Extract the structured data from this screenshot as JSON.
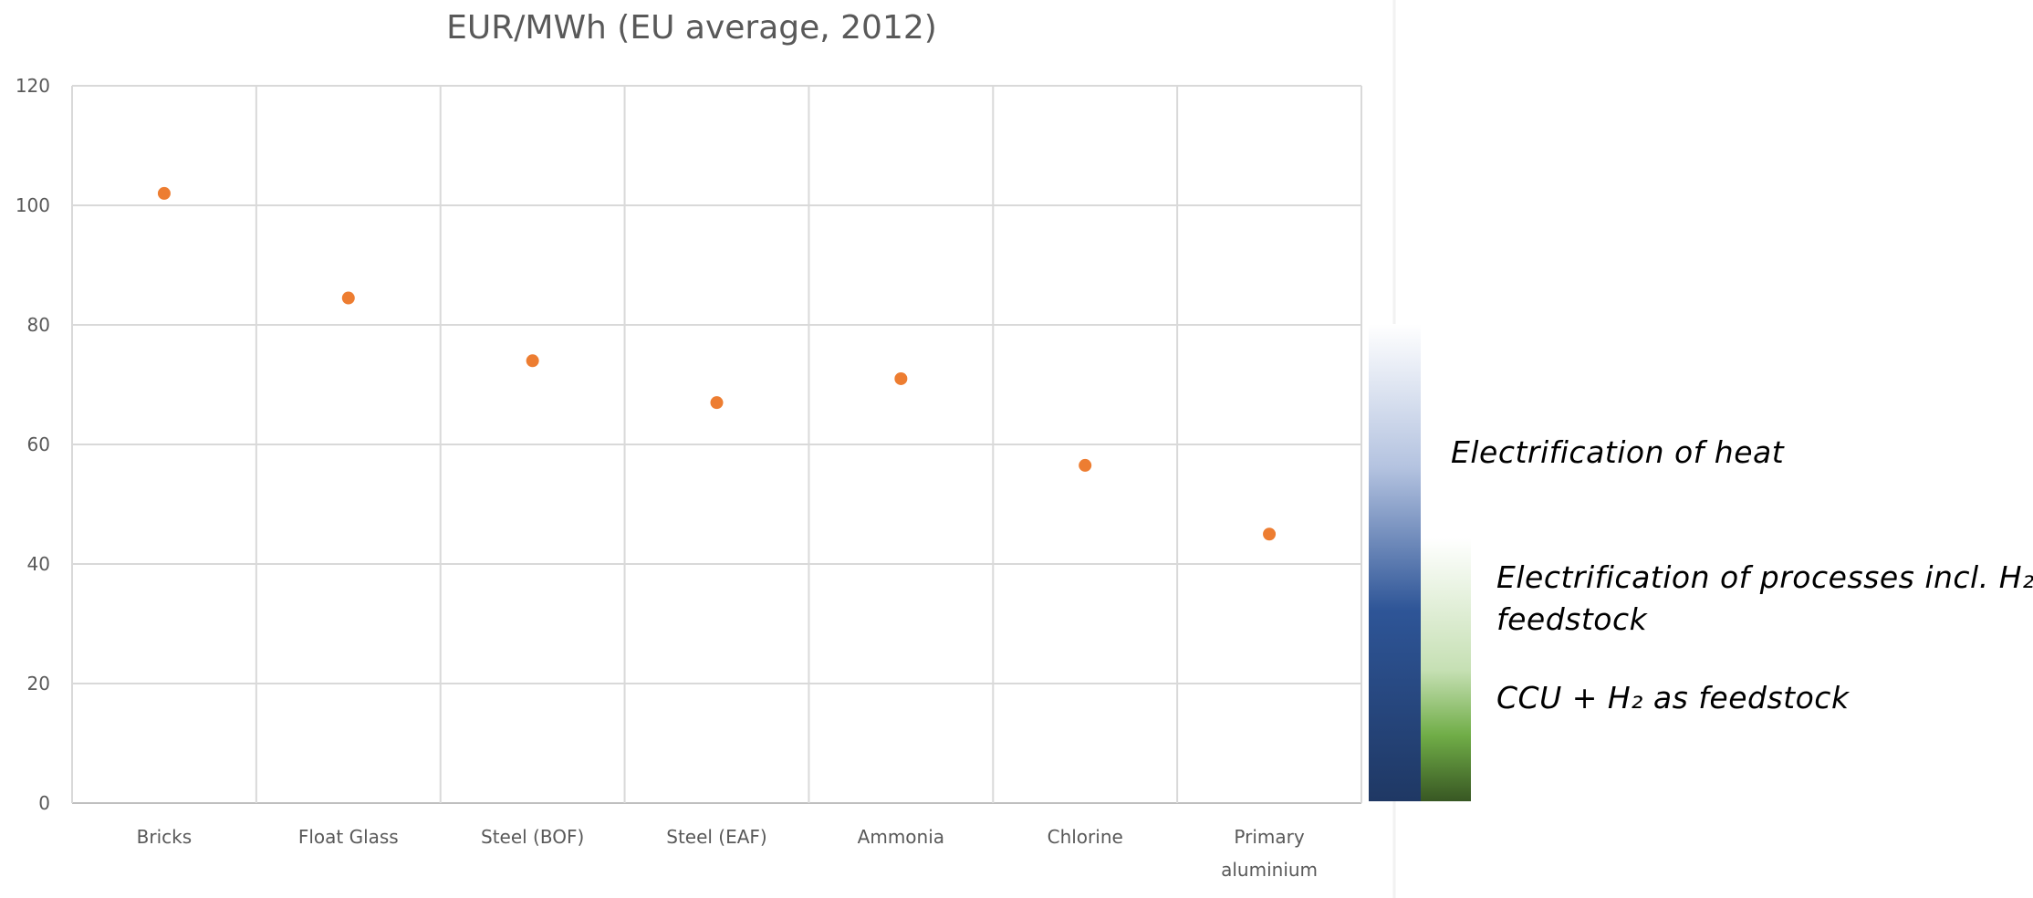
{
  "chart_data": {
    "type": "scatter",
    "title": "EUR/MWh (EU average, 2012)",
    "xlabel": "",
    "ylabel": "",
    "categories": [
      "Bricks",
      "Float Glass",
      "Steel (BOF)",
      "Steel (EAF)",
      "Ammonia",
      "Chlorine",
      "Primary aluminium"
    ],
    "category_lines": [
      [
        "Bricks"
      ],
      [
        "Float Glass"
      ],
      [
        "Steel (BOF)"
      ],
      [
        "Steel (EAF)"
      ],
      [
        "Ammonia"
      ],
      [
        "Chlorine"
      ],
      [
        "Primary",
        "aluminium"
      ]
    ],
    "values": [
      102,
      84.5,
      74,
      67,
      71,
      56.5,
      45
    ],
    "ylim": [
      0,
      120
    ],
    "yticks": [
      0,
      20,
      40,
      60,
      80,
      100,
      120
    ],
    "grid": true,
    "marker_color": "#ED7D31"
  },
  "legend": {
    "items": [
      {
        "text": "Electrification of heat",
        "gradient_top": "#FFFFFF",
        "gradient_bottom": "#1F3864"
      },
      {
        "lines": [
          "Electrification of processes incl. H₂",
          "feedstock"
        ],
        "gradient_top": "#FFFFFF",
        "gradient_bottom": "#385723"
      },
      {
        "text": "CCU + H₂ as feedstock"
      }
    ]
  }
}
